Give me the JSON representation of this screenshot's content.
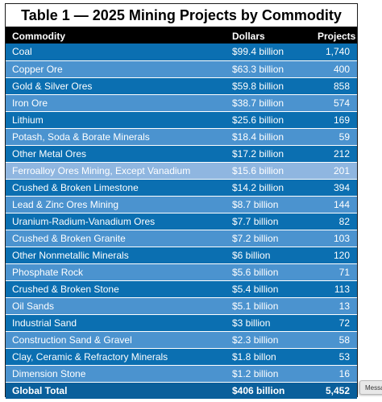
{
  "title": "Table 1 — 2025 Mining Projects by Commodity",
  "headers": {
    "commodity": "Commodity",
    "dollars": "Dollars",
    "projects": "Projects"
  },
  "rows": [
    {
      "commodity": "Coal",
      "dollars": "$99.4 billion",
      "projects": "1,740"
    },
    {
      "commodity": "Copper Ore",
      "dollars": "$63.3 billion",
      "projects": "400"
    },
    {
      "commodity": "Gold & Silver Ores",
      "dollars": "$59.8 billion",
      "projects": "858"
    },
    {
      "commodity": "Iron Ore",
      "dollars": "$38.7 billion",
      "projects": "574"
    },
    {
      "commodity": "Lithium",
      "dollars": "$25.6 billion",
      "projects": "169"
    },
    {
      "commodity": "Potash, Soda & Borate Minerals",
      "dollars": "$18.4 billion",
      "projects": "59"
    },
    {
      "commodity": "Other Metal Ores",
      "dollars": "$17.2 billion",
      "projects": "212"
    },
    {
      "commodity": "Ferroalloy Ores Mining, Except Vanadium",
      "dollars": "$15.6 billion",
      "projects": "201"
    },
    {
      "commodity": "Crushed & Broken Limestone",
      "dollars": "$14.2 billion",
      "projects": "394"
    },
    {
      "commodity": "Lead & Zinc Ores Mining",
      "dollars": "$8.7 billion",
      "projects": "144"
    },
    {
      "commodity": "Uranium-Radium-Vanadium Ores",
      "dollars": "$7.7 billion",
      "projects": "82"
    },
    {
      "commodity": "Crushed & Broken Granite",
      "dollars": "$7.2 billion",
      "projects": "103"
    },
    {
      "commodity": "Other Nonmetallic Minerals",
      "dollars": "$6 billion",
      "projects": "120"
    },
    {
      "commodity": "Phosphate Rock",
      "dollars": "$5.6 billion",
      "projects": "71"
    },
    {
      "commodity": "Crushed & Broken Stone",
      "dollars": "$5.4 billion",
      "projects": "113"
    },
    {
      "commodity": "Oil Sands",
      "dollars": "$5.1 billion",
      "projects": "13"
    },
    {
      "commodity": "Industrial Sand",
      "dollars": "$3 billion",
      "projects": "72"
    },
    {
      "commodity": "Construction Sand & Gravel",
      "dollars": "$2.3 billion",
      "projects": "58"
    },
    {
      "commodity": "Clay, Ceramic & Refractory Minerals",
      "dollars": "$1.8 billon",
      "projects": "53"
    },
    {
      "commodity": "Dimension Stone",
      "dollars": "$1.2 billion",
      "projects": "16"
    }
  ],
  "total": {
    "commodity": "Global Total",
    "dollars": "$406 billion",
    "projects": "5,452"
  },
  "message_tab": "Message",
  "colors": {
    "header_bg": "#000000",
    "row_dark": "#0b6fb1",
    "row_light": "#4b93cf",
    "row_highlight": "#8fb6e0",
    "total_bg": "#0a5f9b"
  }
}
